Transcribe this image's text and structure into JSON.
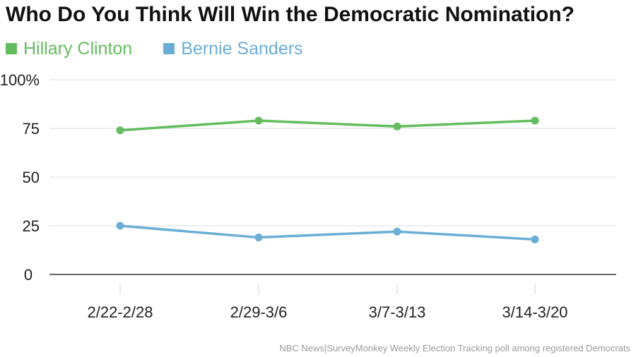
{
  "chart_data": {
    "type": "line",
    "title": "Who Do You Think Will Win the Democratic Nomination?",
    "categories": [
      "2/22-2/28",
      "2/29-3/6",
      "3/7-3/13",
      "3/14-3/20"
    ],
    "series": [
      {
        "name": "Hillary Clinton",
        "values": [
          74,
          79,
          76,
          79
        ],
        "color": "#63bd5e"
      },
      {
        "name": "Bernie Sanders",
        "values": [
          25,
          19,
          22,
          18
        ],
        "color": "#6aaed6"
      }
    ],
    "yticks": [
      "100%",
      "75",
      "50",
      "25",
      "0"
    ],
    "ylim": [
      0,
      100
    ],
    "grid": true,
    "legend": "top-left",
    "source": "NBC News|SurveyMonkey Weekly Election Tracking poll among registered Democrats"
  }
}
